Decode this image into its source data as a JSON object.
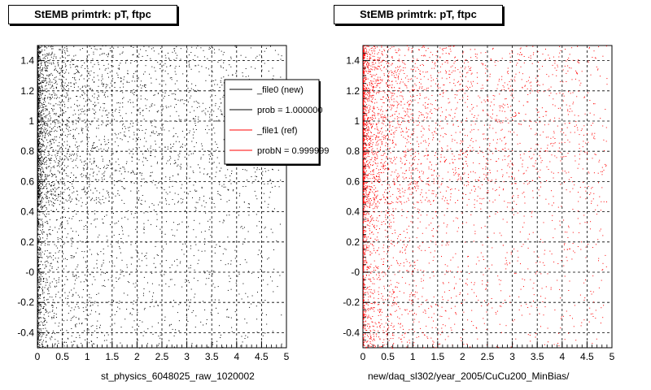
{
  "chart_data": [
    {
      "type": "scatter",
      "title": "StEMB primtrk: pT, ftpc",
      "xlabel": "st_physics_6048025_raw_1020002",
      "ylabel": "",
      "xlim": [
        0,
        5
      ],
      "ylim": [
        -0.5,
        1.5
      ],
      "x_ticks": [
        "0",
        "0.5",
        "1",
        "1.5",
        "2",
        "2.5",
        "3",
        "3.5",
        "4",
        "4.5",
        "5"
      ],
      "y_ticks": [
        "-0.4",
        "-0.2",
        "-0",
        "0.2",
        "0.4",
        "0.6",
        "0.8",
        "1",
        "1.2",
        "1.4"
      ],
      "grid": true,
      "marker_color": "#000000",
      "legend_position": "top-right",
      "legend": [
        {
          "label": "_file0 (new)",
          "color": "#000000"
        },
        {
          "label": "prob = 1.000000",
          "color": "#000000"
        },
        {
          "label": "_file1 (ref)",
          "color": "#ff0000"
        },
        {
          "label": "probN = 0.999999",
          "color": "#ff0000"
        }
      ]
    },
    {
      "type": "scatter",
      "title": "StEMB primtrk: pT, ftpc",
      "xlabel": "new/daq_sl302/year_2005/CuCu200_MinBias/",
      "ylabel": "",
      "xlim": [
        0,
        5
      ],
      "ylim": [
        -0.5,
        1.5
      ],
      "x_ticks": [
        "0",
        "0.5",
        "1",
        "1.5",
        "2",
        "2.5",
        "3",
        "3.5",
        "4",
        "4.5",
        "5"
      ],
      "y_ticks": [
        "-0.4",
        "-0.2",
        "-0",
        "0.2",
        "0.4",
        "0.6",
        "0.8",
        "1",
        "1.2",
        "1.4"
      ],
      "grid": true,
      "marker_color": "#ff0000"
    }
  ]
}
